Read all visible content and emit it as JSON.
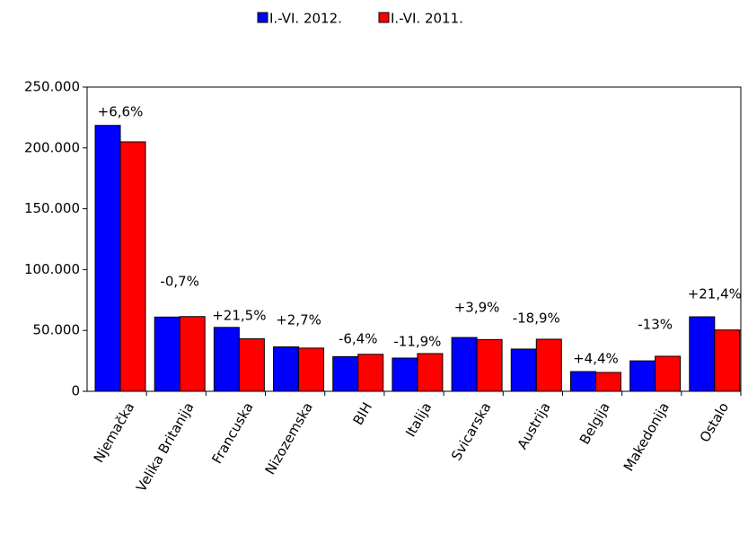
{
  "chart_data": {
    "type": "bar",
    "categories": [
      "Njemačka",
      "Velika Britanija",
      "Francuska",
      "Nizozemska",
      "BIH",
      "Italija",
      "Svicarska",
      "Austrija",
      "Belgija",
      "Makedonija",
      "Ostalo"
    ],
    "series": [
      {
        "name": "I.-VI. 2012.",
        "color": "#0000ff",
        "values": [
          218500,
          61000,
          52500,
          36500,
          28500,
          27300,
          44200,
          34700,
          16200,
          25000,
          61200
        ]
      },
      {
        "name": "I.-VI. 2011.",
        "color": "#ff0000",
        "values": [
          205000,
          61400,
          43200,
          35500,
          30400,
          31000,
          42500,
          42800,
          15500,
          28800,
          50400
        ]
      }
    ],
    "annotations": [
      "+6,6%",
      "-0,7%",
      "+21,5%",
      "+2,7%",
      "-6,4%",
      "-11,9%",
      "+3,9%",
      "-18,9%",
      "+4,4%",
      "-13%",
      "+21,4%"
    ],
    "ylim": [
      0,
      250000
    ],
    "yticks": [
      0,
      {
        "value": 50000,
        "label": "50.000"
      },
      {
        "value": 100000,
        "label": "100.000"
      },
      {
        "value": 150000,
        "label": "150.000"
      },
      {
        "value": 200000,
        "label": "200.000"
      },
      {
        "value": 250000,
        "label": "250.000"
      }
    ],
    "legend": "top"
  }
}
